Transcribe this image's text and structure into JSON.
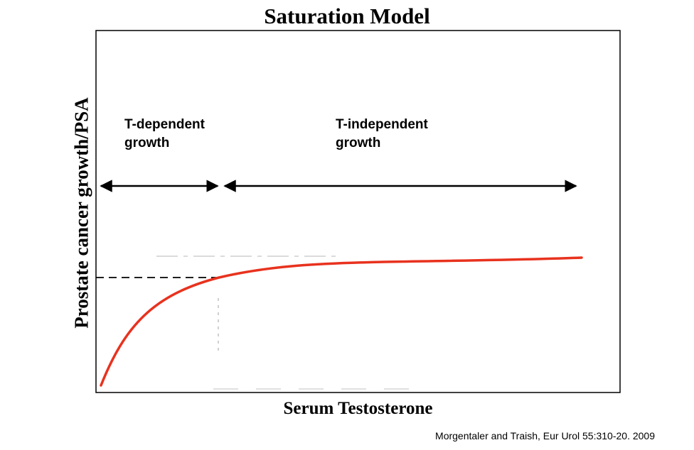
{
  "title": "Saturation Model",
  "ylabel": "Prostate cancer growth/PSA",
  "xlabel": "Serum Testosterone",
  "regions": {
    "dependent": [
      "T-dependent",
      "growth"
    ],
    "independent": [
      "T-independent",
      "growth"
    ]
  },
  "citation": "Morgentaler and Traish, Eur Urol 55:310-20. 2009",
  "colors": {
    "curve": "#e8321e",
    "axes": "#000000"
  }
}
